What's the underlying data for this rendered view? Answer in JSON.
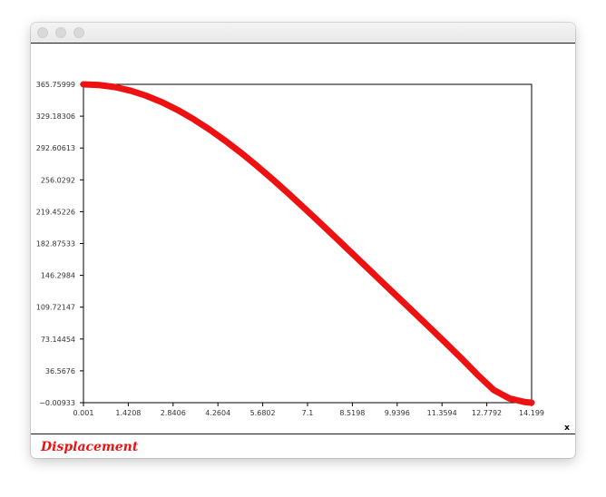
{
  "window": {
    "controls": [
      "close",
      "minimize",
      "zoom"
    ]
  },
  "caption": "Displacement",
  "chart_data": {
    "type": "line",
    "title": "",
    "xlabel": "x",
    "ylabel": "",
    "xlim": [
      0.001,
      14.199
    ],
    "ylim": [
      -0.00933,
      365.75999
    ],
    "x_ticks": [
      "0.001",
      "1.4208",
      "2.8406",
      "4.2604",
      "5.6802",
      "7.1",
      "8.5198",
      "9.9396",
      "11.3594",
      "12.7792",
      "14.199"
    ],
    "y_ticks": [
      "−0.00933",
      "36.5676",
      "73.14454",
      "109.72147",
      "146.2984",
      "182.87533",
      "219.45226",
      "256.0292",
      "292.60613",
      "329.18306",
      "365.75999"
    ],
    "grid": false,
    "legend": "none",
    "series": [
      {
        "color": "#ee1111",
        "x": [
          0.001,
          0.5,
          1.0,
          1.5,
          2.0,
          2.5,
          3.0,
          3.5,
          4.0,
          4.5,
          5.0,
          5.5,
          6.0,
          6.5,
          7.0,
          7.5,
          8.0,
          8.5,
          9.0,
          9.5,
          10.0,
          10.5,
          11.0,
          11.5,
          12.0,
          12.5,
          13.0,
          13.5,
          14.0,
          14.199
        ],
        "y": [
          365.76,
          365.0,
          362.6,
          358.4,
          352.5,
          345.0,
          336.0,
          325.5,
          313.7,
          300.8,
          286.9,
          272.0,
          256.4,
          240.2,
          223.5,
          206.5,
          189.3,
          172.0,
          154.7,
          137.3,
          120.0,
          102.7,
          85.3,
          67.8,
          50.0,
          31.5,
          14.5,
          4.8,
          0.6,
          -0.00933
        ]
      }
    ]
  }
}
